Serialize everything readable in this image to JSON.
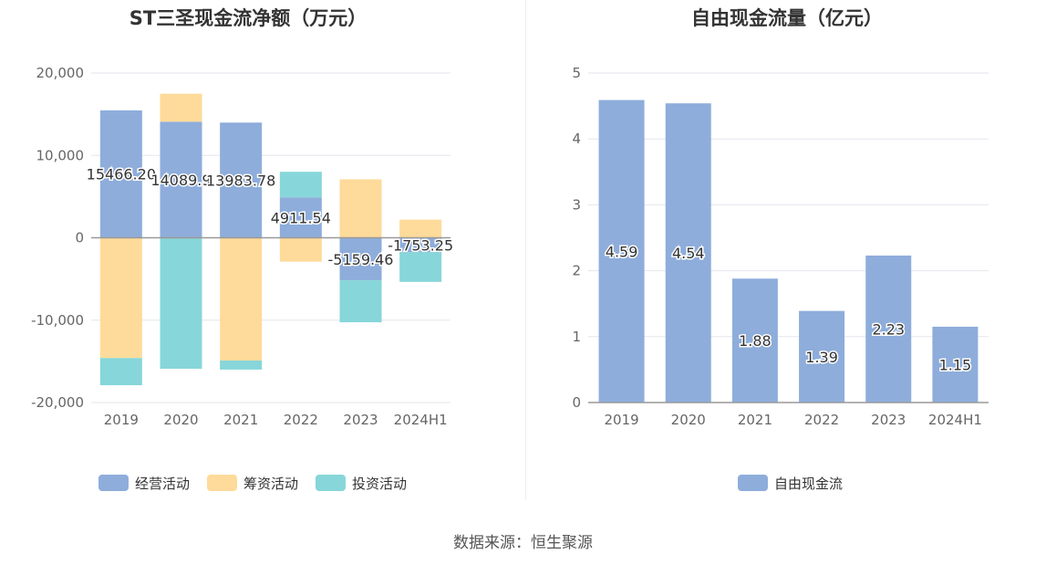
{
  "chart_data": [
    {
      "type": "bar",
      "stacked": true,
      "title": "ST三圣现金流净额（万元）",
      "categories": [
        "2019",
        "2020",
        "2021",
        "2022",
        "2023",
        "2024H1"
      ],
      "ylim": [
        -20000,
        20000
      ],
      "yticks": [
        20000,
        10000,
        0,
        -10000,
        -20000
      ],
      "ytick_labels": [
        "20,000",
        "10,000",
        "0",
        "-10,000",
        "-20,000"
      ],
      "grid": true,
      "legend_position": "bottom",
      "series": [
        {
          "name": "经营活动",
          "color": "#8eaddb",
          "values": [
            15466.2,
            14089.9,
            13983.78,
            4911.54,
            -5159.46,
            -1753.25
          ],
          "labels": [
            "15466.20",
            "14089.9",
            "13983.78",
            "4911.54",
            "-5159.46",
            "-1753.25"
          ]
        },
        {
          "name": "筹资活动",
          "color": "#fedb9a",
          "values": [
            -14600,
            3400,
            -14900,
            -2900,
            7100,
            2200
          ]
        },
        {
          "name": "投资活动",
          "color": "#87d6d9",
          "values": [
            -3300,
            -15900,
            -1100,
            3100,
            -5100,
            -3600
          ]
        }
      ]
    },
    {
      "type": "bar",
      "title": "自由现金流量（亿元）",
      "categories": [
        "2019",
        "2020",
        "2021",
        "2022",
        "2023",
        "2024H1"
      ],
      "ylim": [
        0,
        5
      ],
      "yticks": [
        5,
        4,
        3,
        2,
        1,
        0
      ],
      "ytick_labels": [
        "5",
        "4",
        "3",
        "2",
        "1",
        "0"
      ],
      "grid": true,
      "legend_position": "bottom",
      "series": [
        {
          "name": "自由现金流",
          "color": "#8eaddb",
          "values": [
            4.59,
            4.54,
            1.88,
            1.39,
            2.23,
            1.15
          ],
          "labels": [
            "4.59",
            "4.54",
            "1.88",
            "1.39",
            "2.23",
            "1.15"
          ]
        }
      ]
    }
  ],
  "source_text": "数据来源：恒生聚源"
}
